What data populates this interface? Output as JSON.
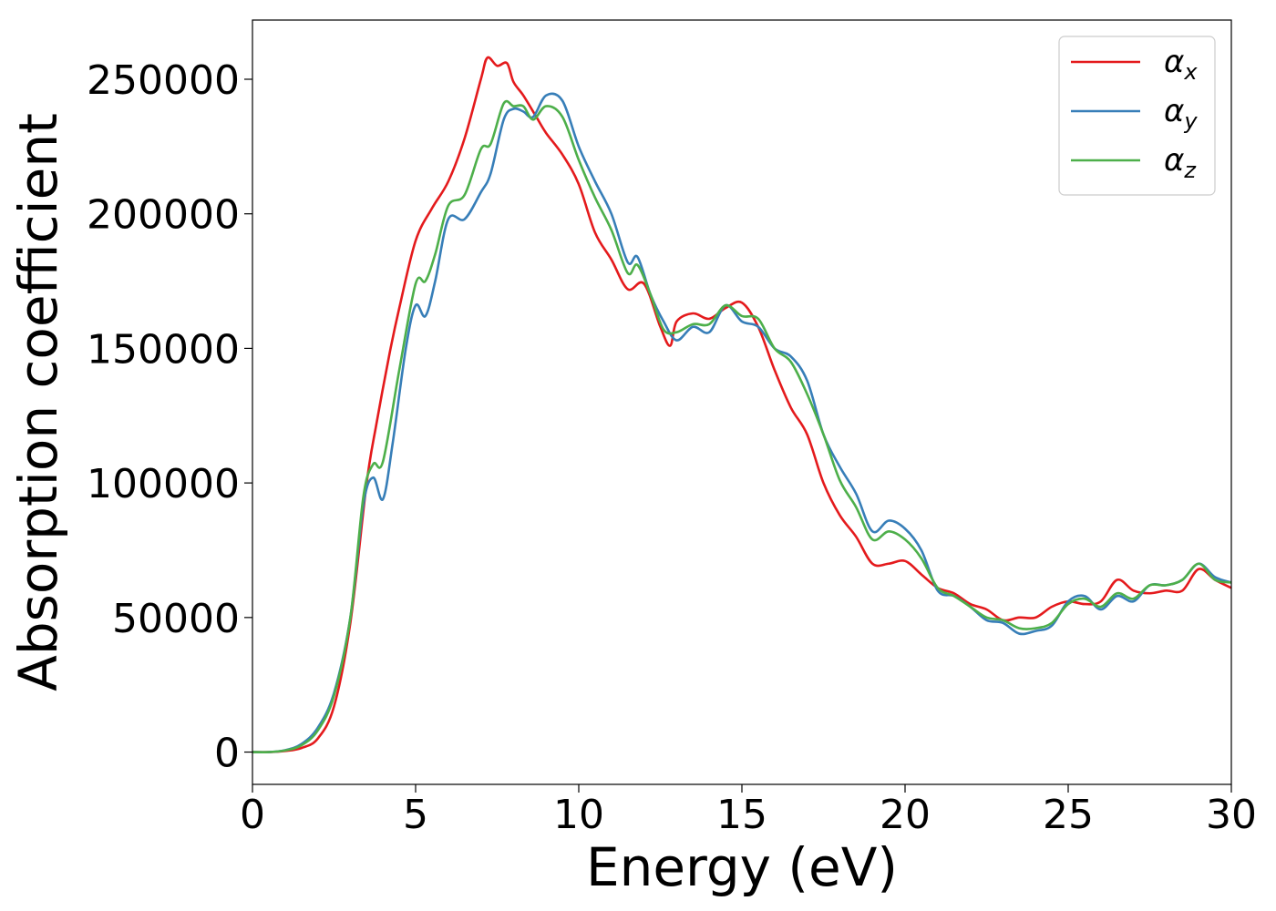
{
  "chart_data": {
    "type": "line",
    "xlabel": "Energy (eV)",
    "ylabel": "Absorption coefficient",
    "xlim": [
      0,
      30
    ],
    "ylim": [
      -12000,
      272000
    ],
    "xticks": [
      0,
      5,
      10,
      15,
      20,
      25,
      30
    ],
    "xtick_labels": [
      "0",
      "5",
      "10",
      "15",
      "20",
      "25",
      "30"
    ],
    "yticks": [
      0,
      50000,
      100000,
      150000,
      200000,
      250000
    ],
    "ytick_labels": [
      "0",
      "50000",
      "100000",
      "150000",
      "200000",
      "250000"
    ],
    "grid": false,
    "legend_position": "top-right",
    "series": [
      {
        "name": "αx",
        "label_main": "α",
        "label_sub": "x",
        "color": "#e41a1c",
        "points": [
          [
            0,
            0
          ],
          [
            0.5,
            0
          ],
          [
            1,
            400
          ],
          [
            1.5,
            1500
          ],
          [
            2,
            5000
          ],
          [
            2.5,
            17000
          ],
          [
            3,
            48000
          ],
          [
            3.5,
            100000
          ],
          [
            3.8,
            122000
          ],
          [
            4.2,
            148000
          ],
          [
            4.5,
            165000
          ],
          [
            5,
            190000
          ],
          [
            5.5,
            202000
          ],
          [
            6,
            212000
          ],
          [
            6.5,
            228000
          ],
          [
            7,
            250000
          ],
          [
            7.2,
            258000
          ],
          [
            7.5,
            255000
          ],
          [
            7.8,
            256000
          ],
          [
            8,
            249000
          ],
          [
            8.3,
            244000
          ],
          [
            8.7,
            236000
          ],
          [
            9,
            230000
          ],
          [
            9.5,
            222000
          ],
          [
            10,
            211000
          ],
          [
            10.5,
            193000
          ],
          [
            11,
            183000
          ],
          [
            11.5,
            172000
          ],
          [
            12,
            174000
          ],
          [
            12.5,
            158000
          ],
          [
            12.8,
            151000
          ],
          [
            13,
            160000
          ],
          [
            13.5,
            163000
          ],
          [
            14,
            161000
          ],
          [
            14.5,
            165000
          ],
          [
            15,
            167000
          ],
          [
            15.5,
            158000
          ],
          [
            16,
            142000
          ],
          [
            16.5,
            128000
          ],
          [
            17,
            118000
          ],
          [
            17.5,
            100000
          ],
          [
            18,
            88000
          ],
          [
            18.5,
            80000
          ],
          [
            19,
            70000
          ],
          [
            19.5,
            70000
          ],
          [
            20,
            71000
          ],
          [
            20.5,
            66000
          ],
          [
            21,
            61000
          ],
          [
            21.5,
            59000
          ],
          [
            22,
            55000
          ],
          [
            22.5,
            53000
          ],
          [
            23,
            49000
          ],
          [
            23.5,
            50000
          ],
          [
            24,
            50000
          ],
          [
            24.5,
            54000
          ],
          [
            25,
            56000
          ],
          [
            25.5,
            55000
          ],
          [
            26,
            56000
          ],
          [
            26.5,
            64000
          ],
          [
            27,
            60000
          ],
          [
            27.5,
            59000
          ],
          [
            28,
            60000
          ],
          [
            28.5,
            60000
          ],
          [
            29,
            68000
          ],
          [
            29.5,
            64000
          ],
          [
            30,
            61000
          ]
        ]
      },
      {
        "name": "αy",
        "label_main": "α",
        "label_sub": "y",
        "color": "#377eb8",
        "points": [
          [
            0,
            0
          ],
          [
            0.5,
            0
          ],
          [
            1,
            700
          ],
          [
            1.5,
            3000
          ],
          [
            2,
            9000
          ],
          [
            2.5,
            22000
          ],
          [
            3,
            50000
          ],
          [
            3.4,
            92000
          ],
          [
            3.7,
            102000
          ],
          [
            4,
            94000
          ],
          [
            4.3,
            115000
          ],
          [
            4.7,
            150000
          ],
          [
            5,
            166000
          ],
          [
            5.3,
            162000
          ],
          [
            5.6,
            175000
          ],
          [
            6,
            198000
          ],
          [
            6.5,
            198000
          ],
          [
            7,
            208000
          ],
          [
            7.3,
            215000
          ],
          [
            7.7,
            235000
          ],
          [
            8,
            239000
          ],
          [
            8.3,
            238000
          ],
          [
            8.6,
            236000
          ],
          [
            9,
            244000
          ],
          [
            9.5,
            242000
          ],
          [
            10,
            225000
          ],
          [
            10.5,
            212000
          ],
          [
            11,
            200000
          ],
          [
            11.5,
            182000
          ],
          [
            11.8,
            184000
          ],
          [
            12.2,
            170000
          ],
          [
            12.6,
            160000
          ],
          [
            13,
            153000
          ],
          [
            13.5,
            158000
          ],
          [
            14,
            156000
          ],
          [
            14.5,
            166000
          ],
          [
            15,
            160000
          ],
          [
            15.5,
            158000
          ],
          [
            16,
            150000
          ],
          [
            16.5,
            147000
          ],
          [
            17,
            138000
          ],
          [
            17.5,
            118000
          ],
          [
            18,
            106000
          ],
          [
            18.5,
            96000
          ],
          [
            19,
            82000
          ],
          [
            19.5,
            86000
          ],
          [
            20,
            83000
          ],
          [
            20.5,
            75000
          ],
          [
            21,
            60000
          ],
          [
            21.5,
            58000
          ],
          [
            22,
            54000
          ],
          [
            22.5,
            49000
          ],
          [
            23,
            48000
          ],
          [
            23.5,
            44000
          ],
          [
            24,
            45000
          ],
          [
            24.5,
            47000
          ],
          [
            25,
            56000
          ],
          [
            25.5,
            58000
          ],
          [
            26,
            53000
          ],
          [
            26.5,
            58000
          ],
          [
            27,
            56000
          ],
          [
            27.5,
            62000
          ],
          [
            28,
            62000
          ],
          [
            28.5,
            64000
          ],
          [
            29,
            70000
          ],
          [
            29.5,
            65000
          ],
          [
            30,
            63000
          ]
        ]
      },
      {
        "name": "αz",
        "label_main": "α",
        "label_sub": "z",
        "color": "#4daf4a",
        "points": [
          [
            0,
            0
          ],
          [
            0.5,
            0
          ],
          [
            1,
            600
          ],
          [
            1.5,
            2500
          ],
          [
            2,
            8000
          ],
          [
            2.5,
            21000
          ],
          [
            3,
            50000
          ],
          [
            3.4,
            95000
          ],
          [
            3.7,
            107000
          ],
          [
            4,
            108000
          ],
          [
            4.5,
            142000
          ],
          [
            5,
            174000
          ],
          [
            5.3,
            175000
          ],
          [
            5.6,
            185000
          ],
          [
            6,
            203000
          ],
          [
            6.5,
            207000
          ],
          [
            7,
            224000
          ],
          [
            7.3,
            226000
          ],
          [
            7.7,
            241000
          ],
          [
            8,
            240000
          ],
          [
            8.3,
            240000
          ],
          [
            8.6,
            235000
          ],
          [
            9,
            240000
          ],
          [
            9.5,
            236000
          ],
          [
            10,
            220000
          ],
          [
            10.5,
            206000
          ],
          [
            11,
            194000
          ],
          [
            11.5,
            178000
          ],
          [
            11.8,
            181000
          ],
          [
            12.2,
            170000
          ],
          [
            12.6,
            157000
          ],
          [
            13,
            156000
          ],
          [
            13.5,
            159000
          ],
          [
            14,
            159000
          ],
          [
            14.5,
            166000
          ],
          [
            15,
            162000
          ],
          [
            15.5,
            161000
          ],
          [
            16,
            150000
          ],
          [
            16.5,
            145000
          ],
          [
            17,
            133000
          ],
          [
            17.5,
            118000
          ],
          [
            18,
            101000
          ],
          [
            18.5,
            91000
          ],
          [
            19,
            79000
          ],
          [
            19.5,
            82000
          ],
          [
            20,
            79000
          ],
          [
            20.5,
            72000
          ],
          [
            21,
            61000
          ],
          [
            21.5,
            58000
          ],
          [
            22,
            54000
          ],
          [
            22.5,
            50000
          ],
          [
            23,
            49000
          ],
          [
            23.5,
            46000
          ],
          [
            24,
            46000
          ],
          [
            24.5,
            48000
          ],
          [
            25,
            55000
          ],
          [
            25.5,
            57000
          ],
          [
            26,
            54000
          ],
          [
            26.5,
            59000
          ],
          [
            27,
            57000
          ],
          [
            27.5,
            62000
          ],
          [
            28,
            62000
          ],
          [
            28.5,
            64000
          ],
          [
            29,
            70000
          ],
          [
            29.5,
            64000
          ],
          [
            30,
            63000
          ]
        ]
      }
    ]
  }
}
